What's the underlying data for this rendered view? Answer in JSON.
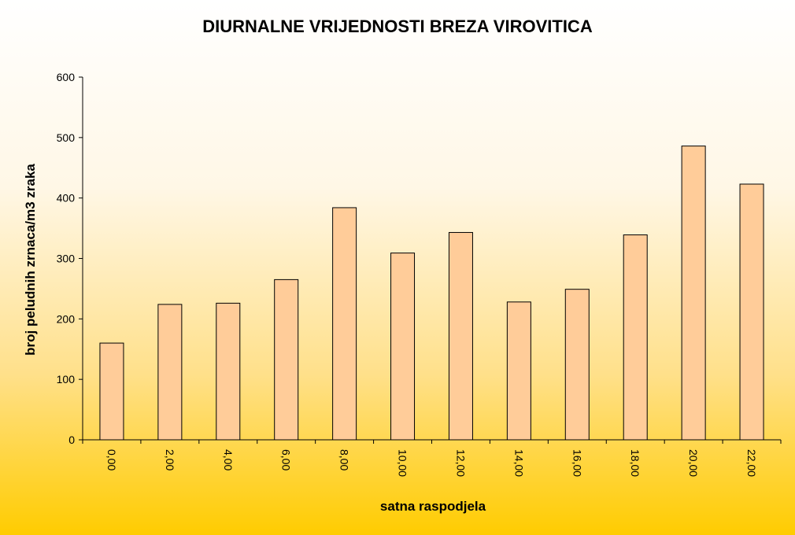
{
  "chart_data": {
    "type": "bar",
    "title": "DIURNALNE VRIJEDNOSTI BREZA VIROVITICA",
    "xlabel": "satna raspodjela",
    "ylabel": "broj peludnih zrnaca/m3 zraka",
    "categories": [
      "0,00",
      "2,00",
      "4,00",
      "6,00",
      "8,00",
      "10,00",
      "12,00",
      "14,00",
      "16,00",
      "18,00",
      "20,00",
      "22,00"
    ],
    "values": [
      160,
      224,
      226,
      265,
      384,
      309,
      343,
      228,
      249,
      339,
      486,
      423
    ],
    "ylim": [
      0,
      600
    ],
    "yticks": [
      0,
      100,
      200,
      300,
      400,
      500,
      600
    ],
    "grid": false,
    "legend": "none",
    "colors": {
      "bar_fill": "#ffcc99",
      "bar_stroke": "#000000",
      "background_top": "#ffffff",
      "background_bottom": "#ffcc00"
    }
  }
}
